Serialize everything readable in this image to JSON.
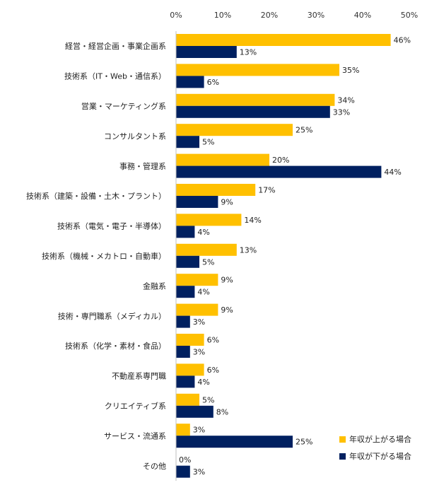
{
  "chart_data": {
    "type": "bar",
    "orientation": "horizontal",
    "title": "",
    "xlabel": "",
    "ylabel": "",
    "xlim": [
      0,
      50
    ],
    "x_ticks": [
      "0%",
      "10%",
      "20%",
      "30%",
      "40%",
      "50%"
    ],
    "x_tick_values": [
      0,
      10,
      20,
      30,
      40,
      50
    ],
    "grid": false,
    "legend_position": "bottom-right",
    "categories": [
      "経営・経営企画・事業企画系",
      "技術系（IT・Web・通信系）",
      "営業・マーケティング系",
      "コンサルタント系",
      "事務・管理系",
      "技術系（建築・設備・土木・プラント）",
      "技術系（電気・電子・半導体）",
      "技術系（機械・メカトロ・自動車）",
      "金融系",
      "技術・専門職系（メディカル）",
      "技術系（化学・素材・食品）",
      "不動産系専門職",
      "クリエイティブ系",
      "サービス・流通系",
      "その他"
    ],
    "series": [
      {
        "name": "年収が上がる場合",
        "color": "#FFC000",
        "values": [
          46,
          35,
          34,
          25,
          20,
          17,
          14,
          13,
          9,
          9,
          6,
          6,
          5,
          3,
          0
        ],
        "labels": [
          "46%",
          "35%",
          "34%",
          "25%",
          "20%",
          "17%",
          "14%",
          "13%",
          "9%",
          "9%",
          "6%",
          "6%",
          "5%",
          "3%",
          "0%"
        ]
      },
      {
        "name": "年収が下がる場合",
        "color": "#002060",
        "values": [
          13,
          6,
          33,
          5,
          44,
          9,
          4,
          5,
          4,
          3,
          3,
          4,
          8,
          25,
          3
        ],
        "labels": [
          "13%",
          "6%",
          "33%",
          "5%",
          "44%",
          "9%",
          "4%",
          "5%",
          "4%",
          "3%",
          "3%",
          "4%",
          "8%",
          "25%",
          "3%"
        ]
      }
    ]
  }
}
